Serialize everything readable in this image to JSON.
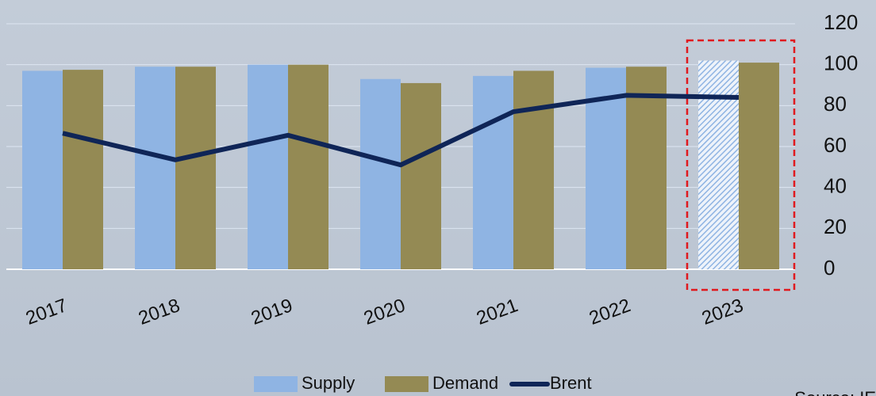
{
  "chart_data": {
    "type": "bar_line",
    "categories": [
      "2017",
      "2018",
      "2019",
      "2020",
      "2021",
      "2022",
      "2023"
    ],
    "series": [
      {
        "name": "Supply",
        "color": "#8fb4e3",
        "kind": "bar",
        "values": [
          97,
          99,
          100,
          93,
          94.5,
          98.5,
          102
        ]
      },
      {
        "name": "Demand",
        "color": "#948a54",
        "kind": "bar",
        "values": [
          97.5,
          99,
          100,
          91,
          97,
          99,
          101
        ]
      },
      {
        "name": "Brent",
        "color": "#0f2557",
        "kind": "line",
        "values": [
          66.5,
          53.5,
          65.5,
          51,
          77,
          85,
          84
        ]
      }
    ],
    "highlight": "2023",
    "ylim": [
      0,
      120
    ],
    "yticks": [
      0,
      20,
      40,
      60,
      80,
      100,
      120
    ],
    "grid": true,
    "source": "Source: IEA"
  }
}
